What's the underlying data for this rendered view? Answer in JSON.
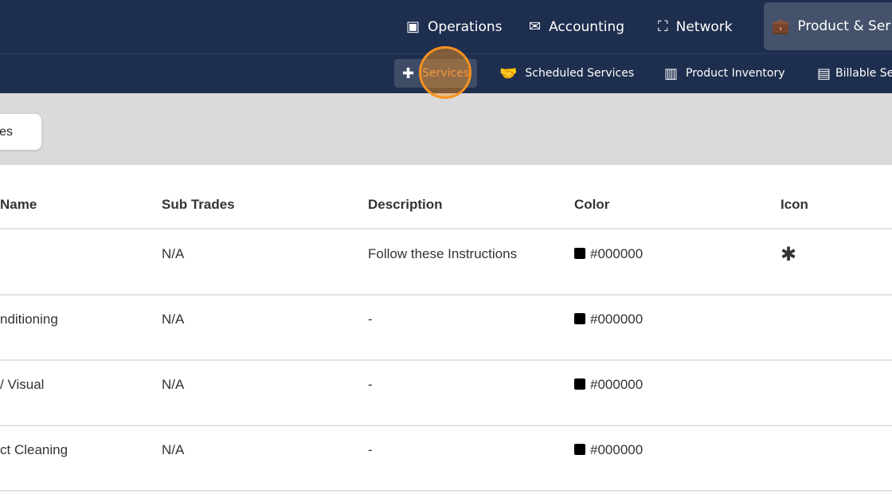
{
  "top_nav": [
    {
      "label": "Operations",
      "icon": "clipboard-user-icon"
    },
    {
      "label": "Accounting",
      "icon": "envelope-dollar-icon"
    },
    {
      "label": "Network",
      "icon": "people-board-icon"
    },
    {
      "label": "Product & Ser",
      "icon": "briefcase-icon",
      "active": true
    }
  ],
  "sub_nav": [
    {
      "label": "Services",
      "icon": "medical-kit-icon",
      "active": true
    },
    {
      "label": "Scheduled Services",
      "icon": "handshake-icon"
    },
    {
      "label": "Product Inventory",
      "icon": "dolly-icon"
    },
    {
      "label": "Billable Se",
      "icon": "file-chart-icon"
    }
  ],
  "toolbar": {
    "button_label": "es"
  },
  "table": {
    "headers": [
      "Name",
      "Sub Trades",
      "Description",
      "Color",
      "Icon"
    ],
    "rows": [
      {
        "name": "",
        "sub_trades": "N/A",
        "description": "Follow these Instructions",
        "color": "#000000",
        "icon": "✱"
      },
      {
        "name": "nditioning",
        "sub_trades": "N/A",
        "description": "-",
        "color": "#000000",
        "icon": ""
      },
      {
        "name": "/ Visual",
        "sub_trades": "N/A",
        "description": "-",
        "color": "#000000",
        "icon": ""
      },
      {
        "name": "ct Cleaning",
        "sub_trades": "N/A",
        "description": "-",
        "color": "#000000",
        "icon": ""
      }
    ]
  },
  "colors": {
    "nav_bg": "#1e2e4e",
    "active_text": "#f3a05a",
    "cursor": "#f7931e"
  }
}
